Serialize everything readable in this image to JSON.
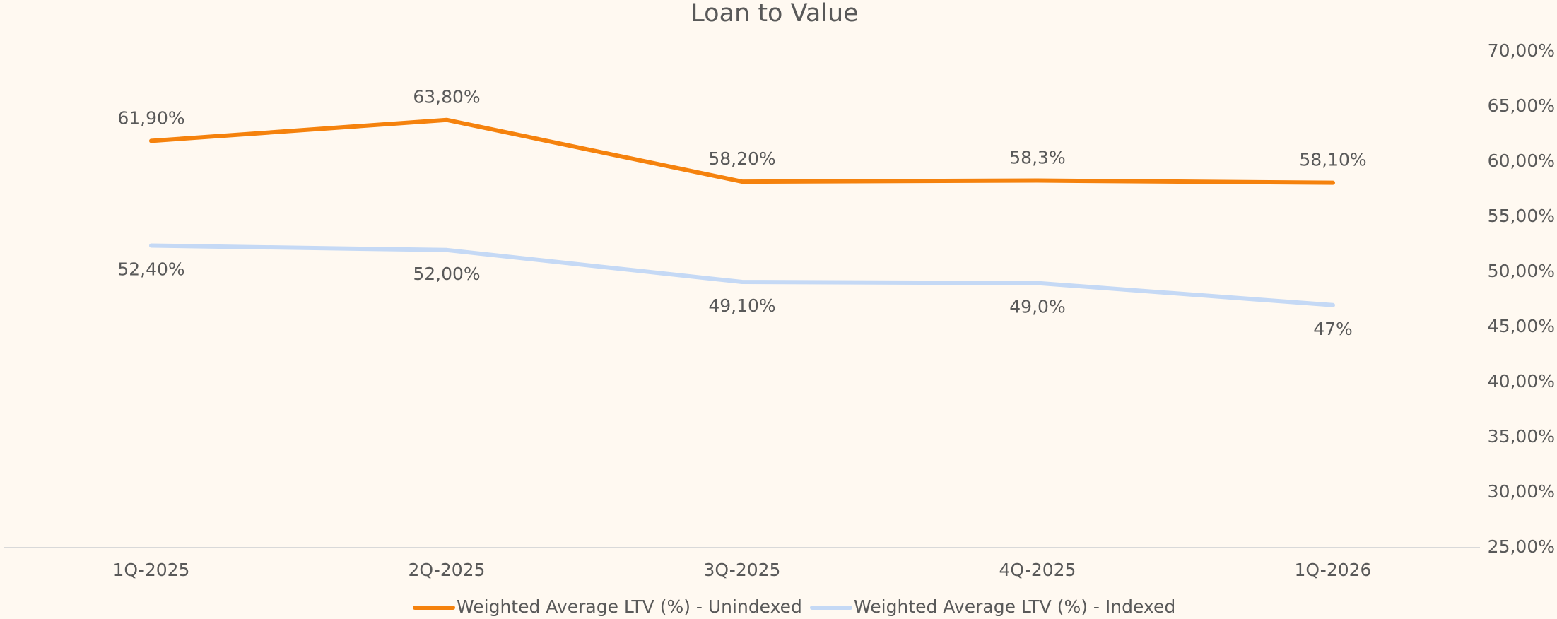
{
  "chart_data": {
    "type": "line",
    "title": "Loan to Value",
    "categories": [
      "1Q-2025",
      "2Q-2025",
      "3Q-2025",
      "4Q-2025",
      "1Q-2026"
    ],
    "series": [
      {
        "name": "Weighted Average LTV (%) - Unindexed",
        "color": "#f5820d",
        "values": [
          61.9,
          63.8,
          58.2,
          58.3,
          58.1
        ],
        "value_labels": [
          "61,90%",
          "63,80%",
          "58,20%",
          "58,3%",
          "58,10%"
        ]
      },
      {
        "name": "Weighted Average LTV (%) - Indexed",
        "color": "#c5d9f5",
        "values": [
          52.4,
          52.0,
          49.1,
          49.0,
          47
        ],
        "value_labels": [
          "52,40%",
          "52,00%",
          "49,10%",
          "49,0%",
          "47%"
        ]
      }
    ],
    "ylim": [
      25,
      70
    ],
    "yticks": [
      {
        "value": 25,
        "label": "25,00%"
      },
      {
        "value": 30,
        "label": "30,00%"
      },
      {
        "value": 35,
        "label": "35,00%"
      },
      {
        "value": 40,
        "label": "40,00%"
      },
      {
        "value": 45,
        "label": "45,00%"
      },
      {
        "value": 50,
        "label": "50,00%"
      },
      {
        "value": 55,
        "label": "55,00%"
      },
      {
        "value": 60,
        "label": "60,00%"
      },
      {
        "value": 65,
        "label": "65,00%"
      },
      {
        "value": 70,
        "label": "70,00%"
      }
    ],
    "grid": false,
    "legend": "bottom"
  }
}
